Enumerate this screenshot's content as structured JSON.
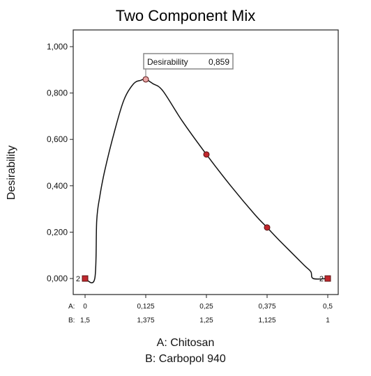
{
  "chart_data": {
    "type": "line",
    "title": "Two Component Mix",
    "ylabel": "Desirability",
    "xlabel_lines": [
      "A: Chitosan",
      "B: Carbopol 940"
    ],
    "xlim": [
      0,
      0.5
    ],
    "ylim": [
      0,
      1
    ],
    "y_ticks": [
      0,
      0.2,
      0.4,
      0.6,
      0.8,
      1.0
    ],
    "y_tick_labels": [
      "0,000",
      "0,200",
      "0,400",
      "0,600",
      "0,800",
      "1,000"
    ],
    "x_axis_rows": [
      {
        "prefix": "A:",
        "ticks": [
          0,
          0.125,
          0.25,
          0.375,
          0.5
        ],
        "labels": [
          "0",
          "0,125",
          "0,25",
          "0,375",
          "0,5"
        ]
      },
      {
        "prefix": "B:",
        "ticks": [
          0,
          0.125,
          0.25,
          0.375,
          0.5
        ],
        "labels": [
          "1,5",
          "1,375",
          "1,25",
          "1,125",
          "1"
        ]
      }
    ],
    "series": [
      {
        "x": [
          0,
          0.02,
          0.024,
          0.03,
          0.04,
          0.06,
          0.08,
          0.1,
          0.115,
          0.125,
          0.14,
          0.16,
          0.2,
          0.25,
          0.3,
          0.35,
          0.375,
          0.4,
          0.45,
          0.465,
          0.47,
          0.5
        ],
        "y": [
          0,
          0,
          0.25,
          0.35,
          0.46,
          0.63,
          0.77,
          0.84,
          0.855,
          0.859,
          0.84,
          0.81,
          0.68,
          0.535,
          0.4,
          0.275,
          0.22,
          0.165,
          0.06,
          0.03,
          0,
          0
        ]
      }
    ],
    "design_points": [
      {
        "x": 0,
        "y": 0
      },
      {
        "x": 0.125,
        "y": 0.859
      },
      {
        "x": 0.25,
        "y": 0.535
      },
      {
        "x": 0.375,
        "y": 0.22
      },
      {
        "x": 0.5,
        "y": 0
      }
    ],
    "point_count_labels": [
      {
        "x": 0,
        "y": 0,
        "text": "2"
      },
      {
        "x": 0.5,
        "y": 0,
        "text": "2"
      }
    ],
    "annotation": {
      "x": 0.125,
      "y": 0.859,
      "label": "Desirability",
      "value": "0,859"
    },
    "colors": {
      "line": "#111111",
      "point_fill": "#c0272d",
      "point_stroke": "#5a1414",
      "highlight_fill": "#e8a6a6",
      "box_border": "#888888"
    }
  }
}
